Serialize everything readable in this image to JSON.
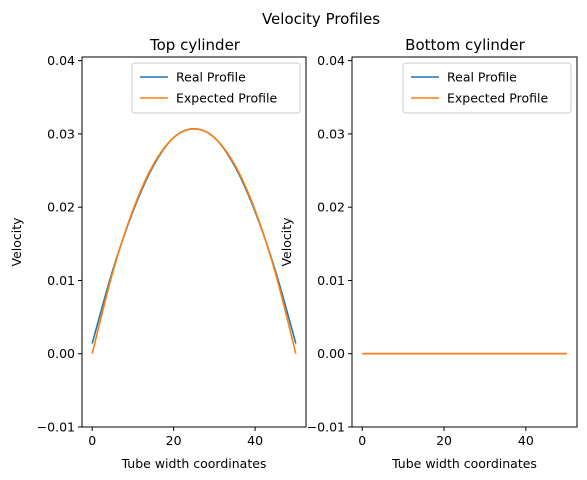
{
  "figure": {
    "suptitle": "Velocity Profiles"
  },
  "colors": {
    "real": "#1f77b4",
    "expected": "#ff7f0e",
    "frame": "#000000",
    "legend_border": "#cccccc"
  },
  "chart_data": [
    {
      "type": "line",
      "title": "Top cylinder",
      "xlabel": "Tube width coordinates",
      "ylabel": "Velocity",
      "xlim": [
        -2.5,
        52.5
      ],
      "ylim": [
        -0.01,
        0.0405
      ],
      "xticks": [
        0,
        20,
        40
      ],
      "xtick_labels": [
        "0",
        "20",
        "40"
      ],
      "yticks": [
        -0.01,
        0.0,
        0.01,
        0.02,
        0.03,
        0.04
      ],
      "ytick_labels": [
        "−0.01",
        "0.00",
        "0.01",
        "0.02",
        "0.03",
        "0.04"
      ],
      "legend": "top-right",
      "grid": false,
      "series": [
        {
          "name": "Real Profile",
          "color": "#1f77b4",
          "x": [
            0,
            5,
            10,
            15,
            20,
            25,
            30,
            35,
            40,
            45,
            50
          ],
          "y": [
            0.0014,
            0.0113,
            0.0194,
            0.0256,
            0.0295,
            0.0307,
            0.0295,
            0.0256,
            0.0194,
            0.0113,
            0.0014
          ]
        },
        {
          "name": "Expected Profile",
          "color": "#ff7f0e",
          "x": [
            0,
            5,
            10,
            15,
            20,
            25,
            30,
            35,
            40,
            45,
            50
          ],
          "y": [
            0.0,
            0.011,
            0.0196,
            0.0258,
            0.0295,
            0.0307,
            0.0295,
            0.0258,
            0.0196,
            0.011,
            0.0
          ]
        }
      ]
    },
    {
      "type": "line",
      "title": "Bottom cylinder",
      "xlabel": "Tube width coordinates",
      "ylabel": "Velocity",
      "xlim": [
        -2.5,
        52.5
      ],
      "ylim": [
        -0.01,
        0.0405
      ],
      "xticks": [
        0,
        20,
        40
      ],
      "xtick_labels": [
        "0",
        "20",
        "40"
      ],
      "yticks": [
        -0.01,
        0.0,
        0.01,
        0.02,
        0.03,
        0.04
      ],
      "ytick_labels": [
        "−0.01",
        "0.00",
        "0.01",
        "0.02",
        "0.03",
        "0.04"
      ],
      "legend": "top-right",
      "grid": false,
      "series": [
        {
          "name": "Real Profile",
          "color": "#1f77b4",
          "x": [
            0,
            50
          ],
          "y": [
            0.0,
            0.0
          ]
        },
        {
          "name": "Expected Profile",
          "color": "#ff7f0e",
          "x": [
            0,
            50
          ],
          "y": [
            0.0,
            0.0
          ]
        }
      ]
    }
  ]
}
